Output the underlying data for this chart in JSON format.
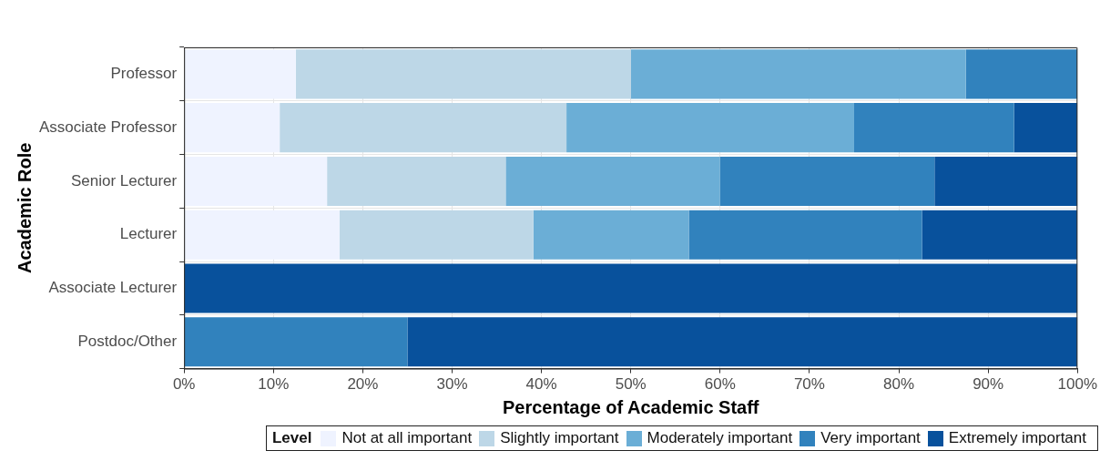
{
  "chart_data": {
    "type": "bar",
    "orientation": "horizontal",
    "stacked": true,
    "categories": [
      "Professor",
      "Associate Professor",
      "Senior Lecturer",
      "Lecturer",
      "Associate Lecturer",
      "Postdoc/Other"
    ],
    "series": [
      {
        "name": "Not at all important",
        "color": "#eff3ff",
        "values": [
          12.5,
          10.7,
          16,
          17.4,
          0,
          0
        ]
      },
      {
        "name": "Slightly important",
        "color": "#bdd7e7",
        "values": [
          37.5,
          32.1,
          20,
          21.7,
          0,
          0
        ]
      },
      {
        "name": "Moderately important",
        "color": "#6baed6",
        "values": [
          37.5,
          32.2,
          24,
          17.4,
          0,
          0
        ]
      },
      {
        "name": "Very important",
        "color": "#3182bd",
        "values": [
          12.5,
          17.9,
          24,
          26.1,
          0,
          25
        ]
      },
      {
        "name": "Extremely important",
        "color": "#08519c",
        "values": [
          0,
          7.1,
          16,
          17.4,
          100,
          75
        ]
      }
    ],
    "xlabel": "Percentage of Academic Staff",
    "ylabel": "Academic Role",
    "legend_title": "Level",
    "xlim": [
      0,
      100
    ],
    "xticks": [
      {
        "value": 0,
        "label": "0%"
      },
      {
        "value": 10,
        "label": "10%"
      },
      {
        "value": 20,
        "label": "20%"
      },
      {
        "value": 30,
        "label": "30%"
      },
      {
        "value": 40,
        "label": "40%"
      },
      {
        "value": 50,
        "label": "50%"
      },
      {
        "value": 60,
        "label": "60%"
      },
      {
        "value": 70,
        "label": "70%"
      },
      {
        "value": 80,
        "label": "80%"
      },
      {
        "value": 90,
        "label": "90%"
      },
      {
        "value": 100,
        "label": "100%"
      }
    ],
    "grid": true,
    "legend": "bottom"
  }
}
